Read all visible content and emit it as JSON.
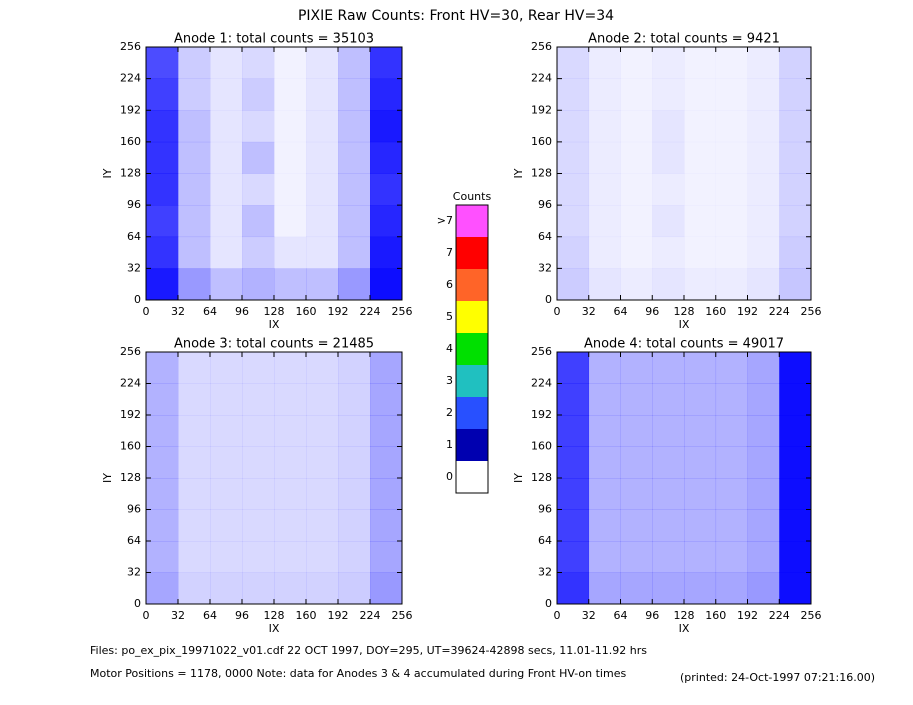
{
  "title": "PIXIE Raw Counts:  Front HV=30, Rear HV=34",
  "chart_data": [
    {
      "type": "heatmap",
      "title": "Anode 1: total counts = 35103",
      "x_label": "IX",
      "y_label": "IY",
      "color": "#0000ff",
      "xlim": [
        0,
        256
      ],
      "ylim": [
        0,
        256
      ],
      "xticks": [
        0,
        32,
        64,
        96,
        128,
        160,
        192,
        224,
        256
      ],
      "yticks": [
        0,
        32,
        64,
        96,
        128,
        160,
        192,
        224,
        256
      ],
      "values": [
        [
          1.4,
          0.4,
          0.2,
          0.3,
          0.1,
          0.2,
          0.5,
          1.6
        ],
        [
          1.5,
          0.4,
          0.2,
          0.4,
          0.1,
          0.2,
          0.5,
          1.7
        ],
        [
          1.6,
          0.5,
          0.2,
          0.3,
          0.1,
          0.2,
          0.5,
          1.8
        ],
        [
          1.6,
          0.5,
          0.2,
          0.5,
          0.1,
          0.2,
          0.5,
          1.7
        ],
        [
          1.6,
          0.5,
          0.2,
          0.3,
          0.1,
          0.2,
          0.5,
          1.6
        ],
        [
          1.5,
          0.5,
          0.2,
          0.5,
          0.1,
          0.2,
          0.5,
          1.7
        ],
        [
          1.6,
          0.5,
          0.2,
          0.4,
          0.2,
          0.2,
          0.5,
          1.8
        ],
        [
          1.8,
          0.8,
          0.5,
          0.6,
          0.5,
          0.5,
          0.8,
          1.9
        ]
      ]
    },
    {
      "type": "heatmap",
      "title": "Anode 2: total counts = 9421",
      "x_label": "IX",
      "y_label": "IY",
      "color": "#0000ff",
      "xlim": [
        0,
        256
      ],
      "ylim": [
        0,
        256
      ],
      "xticks": [
        0,
        32,
        64,
        96,
        128,
        160,
        192,
        224,
        256
      ],
      "yticks": [
        0,
        32,
        64,
        96,
        128,
        160,
        192,
        224,
        256
      ],
      "values": [
        [
          0.3,
          0.15,
          0.1,
          0.15,
          0.1,
          0.1,
          0.15,
          0.35
        ],
        [
          0.3,
          0.15,
          0.1,
          0.15,
          0.1,
          0.1,
          0.15,
          0.35
        ],
        [
          0.3,
          0.15,
          0.1,
          0.2,
          0.1,
          0.1,
          0.15,
          0.35
        ],
        [
          0.3,
          0.15,
          0.1,
          0.2,
          0.1,
          0.1,
          0.15,
          0.35
        ],
        [
          0.3,
          0.15,
          0.1,
          0.15,
          0.1,
          0.1,
          0.15,
          0.35
        ],
        [
          0.3,
          0.15,
          0.1,
          0.2,
          0.1,
          0.1,
          0.15,
          0.35
        ],
        [
          0.35,
          0.15,
          0.1,
          0.15,
          0.1,
          0.1,
          0.15,
          0.4
        ],
        [
          0.4,
          0.2,
          0.15,
          0.2,
          0.15,
          0.15,
          0.2,
          0.45
        ]
      ]
    },
    {
      "type": "heatmap",
      "title": "Anode 3: total counts = 21485",
      "x_label": "IX",
      "y_label": "IY",
      "color": "#0000ff",
      "xlim": [
        0,
        256
      ],
      "ylim": [
        0,
        256
      ],
      "xticks": [
        0,
        32,
        64,
        96,
        128,
        160,
        192,
        224,
        256
      ],
      "yticks": [
        0,
        32,
        64,
        96,
        128,
        160,
        192,
        224,
        256
      ],
      "values": [
        [
          0.6,
          0.3,
          0.3,
          0.3,
          0.3,
          0.3,
          0.35,
          0.7
        ],
        [
          0.6,
          0.3,
          0.3,
          0.3,
          0.3,
          0.3,
          0.35,
          0.7
        ],
        [
          0.6,
          0.3,
          0.3,
          0.3,
          0.3,
          0.3,
          0.35,
          0.7
        ],
        [
          0.6,
          0.3,
          0.3,
          0.3,
          0.3,
          0.3,
          0.35,
          0.7
        ],
        [
          0.6,
          0.3,
          0.3,
          0.3,
          0.3,
          0.3,
          0.35,
          0.7
        ],
        [
          0.6,
          0.3,
          0.3,
          0.3,
          0.3,
          0.3,
          0.35,
          0.7
        ],
        [
          0.6,
          0.3,
          0.3,
          0.3,
          0.3,
          0.3,
          0.35,
          0.7
        ],
        [
          0.7,
          0.35,
          0.35,
          0.35,
          0.35,
          0.35,
          0.4,
          0.8
        ]
      ]
    },
    {
      "type": "heatmap",
      "title": "Anode 4: total counts = 49017",
      "x_label": "IX",
      "y_label": "IY",
      "color": "#0000ff",
      "xlim": [
        0,
        256
      ],
      "ylim": [
        0,
        256
      ],
      "xticks": [
        0,
        32,
        64,
        96,
        128,
        160,
        192,
        224,
        256
      ],
      "yticks": [
        0,
        32,
        64,
        96,
        128,
        160,
        192,
        224,
        256
      ],
      "values": [
        [
          1.5,
          0.6,
          0.6,
          0.6,
          0.6,
          0.6,
          0.7,
          1.9
        ],
        [
          1.5,
          0.6,
          0.6,
          0.6,
          0.6,
          0.6,
          0.7,
          1.9
        ],
        [
          1.5,
          0.6,
          0.6,
          0.6,
          0.6,
          0.6,
          0.7,
          1.9
        ],
        [
          1.5,
          0.6,
          0.6,
          0.6,
          0.6,
          0.6,
          0.7,
          1.9
        ],
        [
          1.5,
          0.6,
          0.6,
          0.6,
          0.6,
          0.6,
          0.7,
          1.9
        ],
        [
          1.5,
          0.6,
          0.6,
          0.6,
          0.6,
          0.6,
          0.7,
          1.9
        ],
        [
          1.5,
          0.6,
          0.6,
          0.6,
          0.6,
          0.6,
          0.7,
          1.9
        ],
        [
          1.6,
          0.7,
          0.7,
          0.7,
          0.7,
          0.7,
          0.8,
          1.9
        ]
      ]
    }
  ],
  "colorbar": {
    "title": "Counts",
    "labels": [
      "0",
      "1",
      "2",
      "3",
      "4",
      "5",
      "6",
      "7",
      ">7"
    ],
    "colors": [
      "#ffffff",
      "#0000b0",
      "#2850ff",
      "#20c0c0",
      "#00e000",
      "#ffff00",
      "#ff6428",
      "#ff0000",
      "#ff50ff"
    ]
  },
  "footer": {
    "files": "Files: po_ex_pix_19971022_v01.cdf    22 OCT 1997, DOY=295, UT=39624-42898 secs, 11.01-11.92 hrs",
    "motor": "Motor Positions = 1178, 0000    Note: data for Anodes 3 & 4 accumulated during Front HV-on times",
    "printed": "(printed: 24-Oct-1997 07:21:16.00)"
  }
}
